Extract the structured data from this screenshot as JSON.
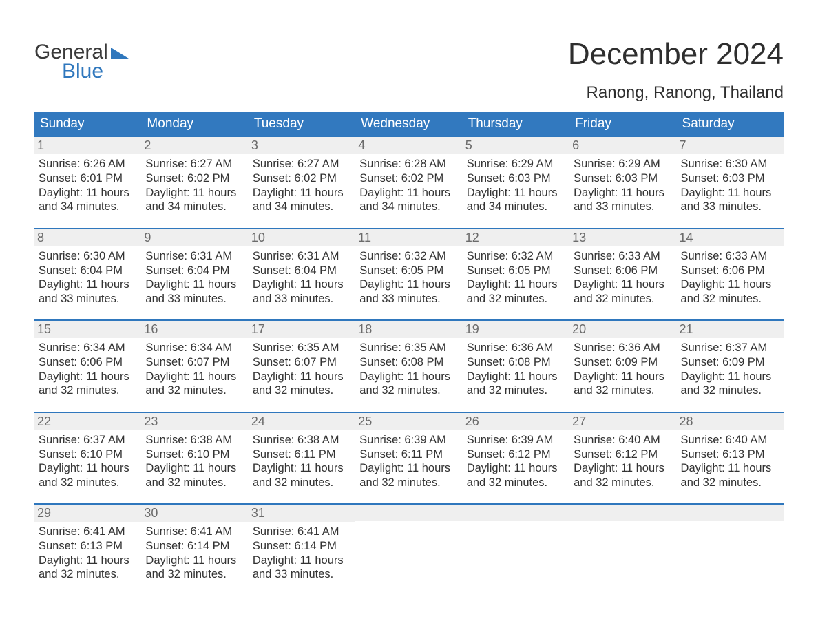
{
  "brand": {
    "line1": "General",
    "line2": "Blue"
  },
  "title": "December 2024",
  "location": "Ranong, Ranong, Thailand",
  "colors": {
    "header_blue": "#3279bf",
    "accent_blue": "#2f77bd",
    "daynum_bg": "#efefef",
    "text": "#444444",
    "background": "#ffffff"
  },
  "weekday_headers": [
    "Sunday",
    "Monday",
    "Tuesday",
    "Wednesday",
    "Thursday",
    "Friday",
    "Saturday"
  ],
  "days": [
    {
      "n": 1,
      "sunrise": "6:26 AM",
      "sunset": "6:01 PM",
      "daylight": "11 hours and 34 minutes."
    },
    {
      "n": 2,
      "sunrise": "6:27 AM",
      "sunset": "6:02 PM",
      "daylight": "11 hours and 34 minutes."
    },
    {
      "n": 3,
      "sunrise": "6:27 AM",
      "sunset": "6:02 PM",
      "daylight": "11 hours and 34 minutes."
    },
    {
      "n": 4,
      "sunrise": "6:28 AM",
      "sunset": "6:02 PM",
      "daylight": "11 hours and 34 minutes."
    },
    {
      "n": 5,
      "sunrise": "6:29 AM",
      "sunset": "6:03 PM",
      "daylight": "11 hours and 34 minutes."
    },
    {
      "n": 6,
      "sunrise": "6:29 AM",
      "sunset": "6:03 PM",
      "daylight": "11 hours and 33 minutes."
    },
    {
      "n": 7,
      "sunrise": "6:30 AM",
      "sunset": "6:03 PM",
      "daylight": "11 hours and 33 minutes."
    },
    {
      "n": 8,
      "sunrise": "6:30 AM",
      "sunset": "6:04 PM",
      "daylight": "11 hours and 33 minutes."
    },
    {
      "n": 9,
      "sunrise": "6:31 AM",
      "sunset": "6:04 PM",
      "daylight": "11 hours and 33 minutes."
    },
    {
      "n": 10,
      "sunrise": "6:31 AM",
      "sunset": "6:04 PM",
      "daylight": "11 hours and 33 minutes."
    },
    {
      "n": 11,
      "sunrise": "6:32 AM",
      "sunset": "6:05 PM",
      "daylight": "11 hours and 33 minutes."
    },
    {
      "n": 12,
      "sunrise": "6:32 AM",
      "sunset": "6:05 PM",
      "daylight": "11 hours and 32 minutes."
    },
    {
      "n": 13,
      "sunrise": "6:33 AM",
      "sunset": "6:06 PM",
      "daylight": "11 hours and 32 minutes."
    },
    {
      "n": 14,
      "sunrise": "6:33 AM",
      "sunset": "6:06 PM",
      "daylight": "11 hours and 32 minutes."
    },
    {
      "n": 15,
      "sunrise": "6:34 AM",
      "sunset": "6:06 PM",
      "daylight": "11 hours and 32 minutes."
    },
    {
      "n": 16,
      "sunrise": "6:34 AM",
      "sunset": "6:07 PM",
      "daylight": "11 hours and 32 minutes."
    },
    {
      "n": 17,
      "sunrise": "6:35 AM",
      "sunset": "6:07 PM",
      "daylight": "11 hours and 32 minutes."
    },
    {
      "n": 18,
      "sunrise": "6:35 AM",
      "sunset": "6:08 PM",
      "daylight": "11 hours and 32 minutes."
    },
    {
      "n": 19,
      "sunrise": "6:36 AM",
      "sunset": "6:08 PM",
      "daylight": "11 hours and 32 minutes."
    },
    {
      "n": 20,
      "sunrise": "6:36 AM",
      "sunset": "6:09 PM",
      "daylight": "11 hours and 32 minutes."
    },
    {
      "n": 21,
      "sunrise": "6:37 AM",
      "sunset": "6:09 PM",
      "daylight": "11 hours and 32 minutes."
    },
    {
      "n": 22,
      "sunrise": "6:37 AM",
      "sunset": "6:10 PM",
      "daylight": "11 hours and 32 minutes."
    },
    {
      "n": 23,
      "sunrise": "6:38 AM",
      "sunset": "6:10 PM",
      "daylight": "11 hours and 32 minutes."
    },
    {
      "n": 24,
      "sunrise": "6:38 AM",
      "sunset": "6:11 PM",
      "daylight": "11 hours and 32 minutes."
    },
    {
      "n": 25,
      "sunrise": "6:39 AM",
      "sunset": "6:11 PM",
      "daylight": "11 hours and 32 minutes."
    },
    {
      "n": 26,
      "sunrise": "6:39 AM",
      "sunset": "6:12 PM",
      "daylight": "11 hours and 32 minutes."
    },
    {
      "n": 27,
      "sunrise": "6:40 AM",
      "sunset": "6:12 PM",
      "daylight": "11 hours and 32 minutes."
    },
    {
      "n": 28,
      "sunrise": "6:40 AM",
      "sunset": "6:13 PM",
      "daylight": "11 hours and 32 minutes."
    },
    {
      "n": 29,
      "sunrise": "6:41 AM",
      "sunset": "6:13 PM",
      "daylight": "11 hours and 32 minutes."
    },
    {
      "n": 30,
      "sunrise": "6:41 AM",
      "sunset": "6:14 PM",
      "daylight": "11 hours and 32 minutes."
    },
    {
      "n": 31,
      "sunrise": "6:41 AM",
      "sunset": "6:14 PM",
      "daylight": "11 hours and 33 minutes."
    }
  ],
  "labels": {
    "sunrise": "Sunrise:",
    "sunset": "Sunset:",
    "daylight": "Daylight:"
  },
  "start_weekday": 0
}
